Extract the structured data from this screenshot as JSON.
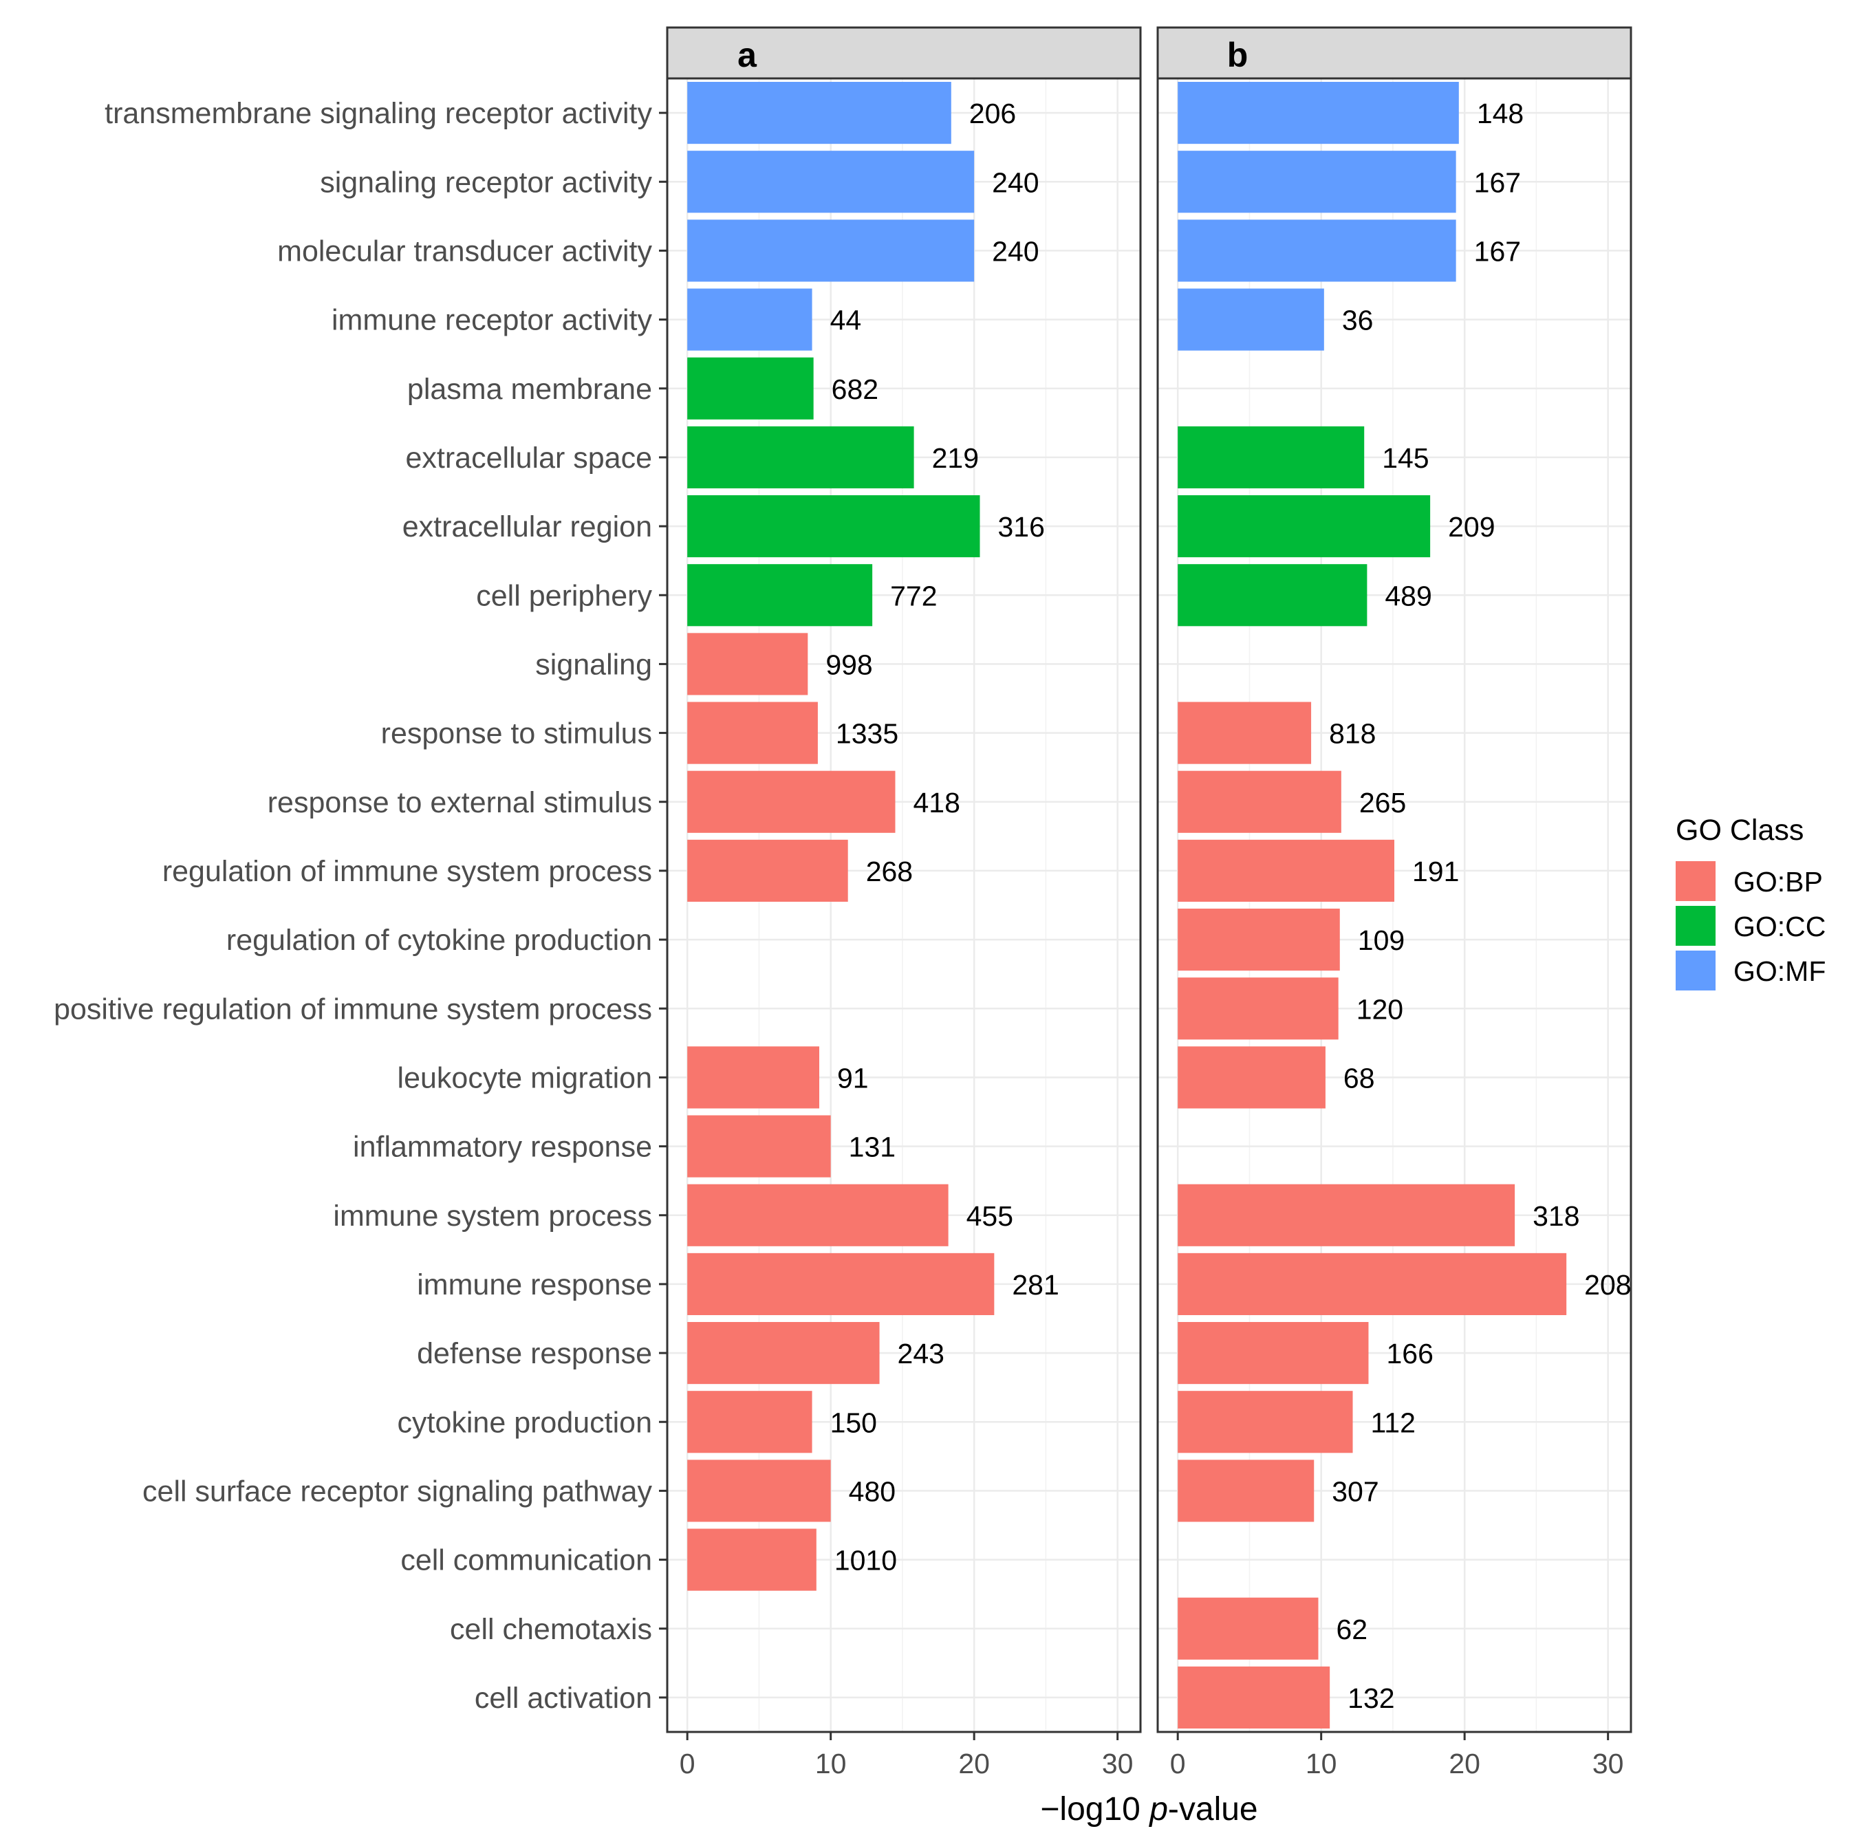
{
  "chart_data": {
    "type": "bar",
    "orientation": "horizontal",
    "xlabel": "−log10 p-value",
    "xlabel_prefix": "−log10 ",
    "xlabel_italic": "p",
    "xlabel_suffix": "-value",
    "xlim": [
      -1.4,
      31.6
    ],
    "xticks": [
      0,
      10,
      20,
      30
    ],
    "grid": true,
    "legend": {
      "title": "GO Class",
      "position": "right",
      "entries": [
        {
          "label": "GO:BP",
          "color": "#F8766D"
        },
        {
          "label": "GO:CC",
          "color": "#00BA38"
        },
        {
          "label": "GO:MF",
          "color": "#619CFF"
        }
      ]
    },
    "categories": [
      "transmembrane signaling receptor activity",
      "signaling receptor activity",
      "molecular transducer activity",
      "immune receptor activity",
      "plasma membrane",
      "extracellular space",
      "extracellular region",
      "cell periphery",
      "signaling",
      "response to stimulus",
      "response to external stimulus",
      "regulation of immune system process",
      "regulation of cytokine production",
      "positive regulation of immune system process",
      "leukocyte migration",
      "inflammatory response",
      "immune system process",
      "immune response",
      "defense response",
      "cytokine production",
      "cell surface receptor signaling pathway",
      "cell communication",
      "cell chemotaxis",
      "cell activation"
    ],
    "category_class": [
      "GO:MF",
      "GO:MF",
      "GO:MF",
      "GO:MF",
      "GO:CC",
      "GO:CC",
      "GO:CC",
      "GO:CC",
      "GO:BP",
      "GO:BP",
      "GO:BP",
      "GO:BP",
      "GO:BP",
      "GO:BP",
      "GO:BP",
      "GO:BP",
      "GO:BP",
      "GO:BP",
      "GO:BP",
      "GO:BP",
      "GO:BP",
      "GO:BP",
      "GO:BP",
      "GO:BP"
    ],
    "panels": [
      {
        "name": "a",
        "values": [
          18.4,
          20.0,
          20.0,
          8.7,
          8.8,
          15.8,
          20.4,
          12.9,
          8.4,
          9.1,
          14.5,
          11.2,
          null,
          null,
          9.2,
          10.0,
          18.2,
          21.4,
          13.4,
          8.7,
          10.0,
          9.0,
          null,
          null
        ],
        "counts": [
          "206",
          "240",
          "240",
          "44",
          "682",
          "219",
          "316",
          "772",
          "998",
          "1335",
          "418",
          "268",
          null,
          null,
          "91",
          "131",
          "455",
          "281",
          "243",
          "150",
          "480",
          "1010",
          null,
          null
        ]
      },
      {
        "name": "b",
        "values": [
          19.6,
          19.4,
          19.4,
          10.2,
          null,
          13.0,
          17.6,
          13.2,
          null,
          9.3,
          11.4,
          15.1,
          11.3,
          11.2,
          10.3,
          null,
          23.5,
          27.1,
          13.3,
          12.2,
          9.5,
          null,
          9.8,
          10.6
        ],
        "counts": [
          "148",
          "167",
          "167",
          "36",
          null,
          "145",
          "209",
          "489",
          null,
          "818",
          "265",
          "191",
          "109",
          "120",
          "68",
          null,
          "318",
          "208",
          "166",
          "112",
          "307",
          null,
          "62",
          "132"
        ]
      }
    ]
  }
}
